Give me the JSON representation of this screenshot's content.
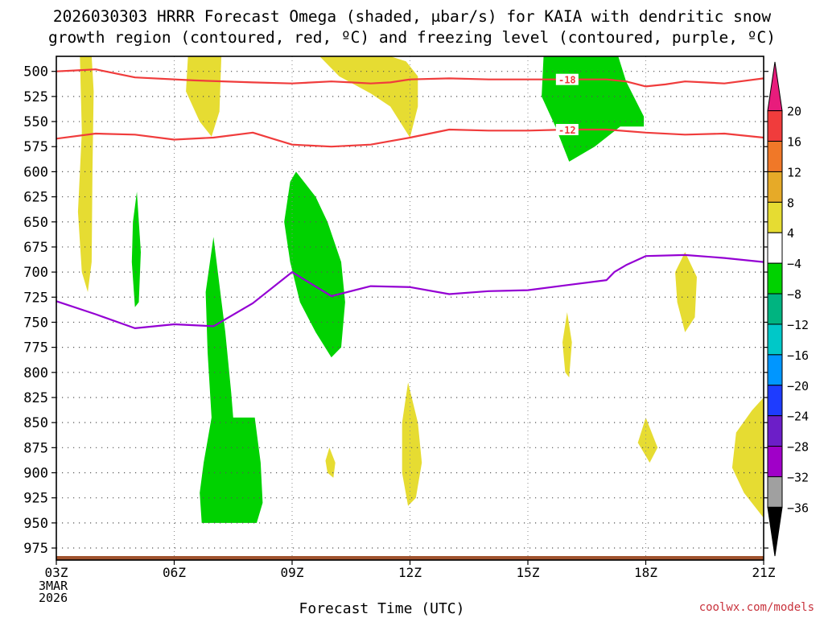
{
  "title": {
    "line1": "2026030303 HRRR Forecast Omega (shaded, μbar/s) for KAIA with dendritic snow",
    "line2": "growth region (contoured, red, ºC) and freezing level (contoured, purple, ºC)"
  },
  "credit": "coolwx.com/models",
  "chart_data": {
    "type": "contour",
    "title": "2026030303 HRRR Forecast Omega (shaded, μbar/s) for KAIA with dendritic snow growth region (contoured, red, ºC) and freezing level (contoured, purple, ºC)",
    "xlabel": "Forecast Time (UTC)",
    "ylabel": "",
    "xlim": [
      3,
      21
    ],
    "ylim": [
      987,
      485
    ],
    "x_ticks": [
      {
        "value": 3,
        "label": "03Z"
      },
      {
        "value": 6,
        "label": "06Z"
      },
      {
        "value": 9,
        "label": "09Z"
      },
      {
        "value": 12,
        "label": "12Z"
      },
      {
        "value": 15,
        "label": "15Z"
      },
      {
        "value": 18,
        "label": "18Z"
      },
      {
        "value": 21,
        "label": "21Z"
      }
    ],
    "x_first_sublabels": [
      "3MAR",
      "2026"
    ],
    "y_ticks": [
      500,
      525,
      550,
      575,
      600,
      625,
      650,
      675,
      700,
      725,
      750,
      775,
      800,
      825,
      850,
      875,
      900,
      925,
      950,
      975
    ],
    "grid": true,
    "colorbar": {
      "labels": [
        "20",
        "16",
        "12",
        "8",
        "4",
        "−4",
        "−8",
        "−12",
        "−16",
        "−20",
        "−24",
        "−28",
        "−32",
        "−36"
      ],
      "colors": [
        "#e81c7c",
        "#f03c3c",
        "#f07828",
        "#e6aa28",
        "#e6dc32",
        "#ffffff",
        "#00d200",
        "#00b480",
        "#00c8c8",
        "#0096ff",
        "#1e3cff",
        "#6c1ec8",
        "#a000c8",
        "#a0a0a0",
        "#000000"
      ]
    },
    "shaded_regions": [
      {
        "category": "4 to 8",
        "color": "#e6dc32",
        "points": [
          [
            3.6,
            485
          ],
          [
            3.9,
            485
          ],
          [
            3.95,
            520
          ],
          [
            3.92,
            600
          ],
          [
            3.9,
            690
          ],
          [
            3.8,
            720
          ],
          [
            3.65,
            700
          ],
          [
            3.55,
            640
          ],
          [
            3.65,
            560
          ],
          [
            3.6,
            485
          ]
        ]
      },
      {
        "category": "4 to 8",
        "color": "#e6dc32",
        "points": [
          [
            6.35,
            485
          ],
          [
            7.2,
            485
          ],
          [
            7.15,
            540
          ],
          [
            6.95,
            565
          ],
          [
            6.65,
            550
          ],
          [
            6.3,
            520
          ],
          [
            6.35,
            485
          ]
        ]
      },
      {
        "category": "4 to 8",
        "color": "#e6dc32",
        "points": [
          [
            9.7,
            485
          ],
          [
            11.5,
            485
          ],
          [
            11.9,
            490
          ],
          [
            12.2,
            505
          ],
          [
            12.2,
            535
          ],
          [
            12,
            566
          ],
          [
            11.5,
            535
          ],
          [
            11,
            522
          ],
          [
            10.2,
            505
          ],
          [
            9.7,
            485
          ]
        ]
      },
      {
        "category": "4 to 8",
        "color": "#e6dc32",
        "points": [
          [
            11.95,
            810
          ],
          [
            12.2,
            850
          ],
          [
            12.3,
            890
          ],
          [
            12.15,
            925
          ],
          [
            11.95,
            933
          ],
          [
            11.8,
            900
          ],
          [
            11.8,
            850
          ],
          [
            11.95,
            810
          ]
        ]
      },
      {
        "category": "4 to 8",
        "color": "#e6dc32",
        "points": [
          [
            9.95,
            875
          ],
          [
            10.1,
            890
          ],
          [
            10.05,
            905
          ],
          [
            9.9,
            900
          ],
          [
            9.85,
            888
          ],
          [
            9.95,
            875
          ]
        ]
      },
      {
        "category": "4 to 8",
        "color": "#e6dc32",
        "points": [
          [
            16,
            740
          ],
          [
            16.12,
            770
          ],
          [
            16.05,
            805
          ],
          [
            15.95,
            800
          ],
          [
            15.88,
            770
          ],
          [
            16,
            740
          ]
        ]
      },
      {
        "category": "4 to 8",
        "color": "#e6dc32",
        "points": [
          [
            19,
            680
          ],
          [
            19.3,
            705
          ],
          [
            19.25,
            745
          ],
          [
            19,
            760
          ],
          [
            18.8,
            730
          ],
          [
            18.75,
            700
          ],
          [
            19,
            680
          ]
        ]
      },
      {
        "category": "4 to 8",
        "color": "#e6dc32",
        "points": [
          [
            18,
            845
          ],
          [
            18.3,
            875
          ],
          [
            18.1,
            890
          ],
          [
            17.8,
            870
          ],
          [
            18,
            845
          ]
        ]
      },
      {
        "category": "4 to 8",
        "color": "#e6dc32",
        "points": [
          [
            21,
            825
          ],
          [
            21,
            945
          ],
          [
            20.5,
            920
          ],
          [
            20.2,
            895
          ],
          [
            20.3,
            860
          ],
          [
            20.7,
            838
          ],
          [
            21,
            825
          ]
        ]
      },
      {
        "category": "-8 to -4",
        "color": "#00d200",
        "points": [
          [
            5.05,
            620
          ],
          [
            5.15,
            680
          ],
          [
            5.1,
            730
          ],
          [
            5,
            735
          ],
          [
            4.92,
            690
          ],
          [
            4.95,
            650
          ],
          [
            5.05,
            620
          ]
        ]
      },
      {
        "category": "-8 to -4",
        "color": "#00d200",
        "points": [
          [
            7,
            665
          ],
          [
            7.3,
            760
          ],
          [
            7.45,
            820
          ],
          [
            7.5,
            845
          ],
          [
            8.05,
            845
          ],
          [
            8.2,
            890
          ],
          [
            8.25,
            930
          ],
          [
            8.1,
            950
          ],
          [
            6.7,
            950
          ],
          [
            6.65,
            920
          ],
          [
            6.75,
            890
          ],
          [
            6.95,
            845
          ],
          [
            6.85,
            780
          ],
          [
            6.8,
            720
          ],
          [
            7,
            665
          ]
        ]
      },
      {
        "category": "-8 to -4",
        "color": "#00d200",
        "points": [
          [
            9.1,
            600
          ],
          [
            9.6,
            625
          ],
          [
            9.9,
            650
          ],
          [
            10.25,
            690
          ],
          [
            10.35,
            730
          ],
          [
            10.25,
            775
          ],
          [
            10,
            785
          ],
          [
            9.6,
            760
          ],
          [
            9.2,
            730
          ],
          [
            8.95,
            690
          ],
          [
            8.8,
            650
          ],
          [
            8.95,
            610
          ],
          [
            9.1,
            600
          ]
        ]
      },
      {
        "category": "-8 to -4",
        "color": "#00d200",
        "points": [
          [
            15.4,
            485
          ],
          [
            17.3,
            485
          ],
          [
            17.5,
            510
          ],
          [
            17.95,
            545
          ],
          [
            17.95,
            555
          ],
          [
            17.35,
            555
          ],
          [
            16.7,
            575
          ],
          [
            16.05,
            590
          ],
          [
            15.7,
            555
          ],
          [
            15.35,
            525
          ],
          [
            15.4,
            485
          ]
        ]
      }
    ],
    "contours": [
      {
        "name": "dendritic -18 ºC",
        "color": "#f03c3c",
        "label": "-18",
        "points": [
          [
            3,
            500
          ],
          [
            3.5,
            499
          ],
          [
            4,
            498
          ],
          [
            5,
            506
          ],
          [
            6.5,
            509
          ],
          [
            8,
            511
          ],
          [
            9,
            512
          ],
          [
            10,
            510
          ],
          [
            10.5,
            511
          ],
          [
            11,
            512
          ],
          [
            11.5,
            511
          ],
          [
            12,
            508
          ],
          [
            13,
            507
          ],
          [
            14,
            508
          ],
          [
            15,
            508
          ],
          [
            16,
            508
          ],
          [
            17,
            508
          ],
          [
            17.5,
            510
          ],
          [
            18,
            515
          ],
          [
            18.5,
            513
          ],
          [
            19,
            510
          ],
          [
            19.5,
            511
          ],
          [
            20,
            512
          ],
          [
            21,
            507
          ]
        ]
      },
      {
        "name": "dendritic -12 ºC",
        "color": "#f03c3c",
        "label": "-12",
        "points": [
          [
            3,
            567
          ],
          [
            4,
            562
          ],
          [
            5,
            563
          ],
          [
            6,
            568
          ],
          [
            7,
            566
          ],
          [
            8,
            561
          ],
          [
            8.5,
            567
          ],
          [
            9,
            573
          ],
          [
            10,
            575
          ],
          [
            11,
            573
          ],
          [
            12,
            566
          ],
          [
            13,
            558
          ],
          [
            14,
            559
          ],
          [
            15,
            559
          ],
          [
            16,
            558
          ],
          [
            17,
            558
          ],
          [
            18,
            561
          ],
          [
            19,
            563
          ],
          [
            20,
            562
          ],
          [
            21,
            566
          ]
        ]
      },
      {
        "name": "freezing level 0 ºC",
        "color": "#9400d3",
        "points": [
          [
            3,
            729
          ],
          [
            4,
            742
          ],
          [
            5,
            756
          ],
          [
            6,
            752
          ],
          [
            7,
            754
          ],
          [
            8,
            731
          ],
          [
            9,
            700
          ],
          [
            10,
            724
          ],
          [
            11,
            714
          ],
          [
            12,
            715
          ],
          [
            13,
            722
          ],
          [
            14,
            719
          ],
          [
            15,
            718
          ],
          [
            16,
            713
          ],
          [
            17,
            708
          ],
          [
            17.2,
            700
          ],
          [
            17.5,
            693
          ],
          [
            18,
            684
          ],
          [
            19,
            683
          ],
          [
            20,
            686
          ],
          [
            21,
            690
          ]
        ]
      }
    ],
    "terrain": {
      "color": "#a0522d",
      "pressure": 983
    }
  }
}
